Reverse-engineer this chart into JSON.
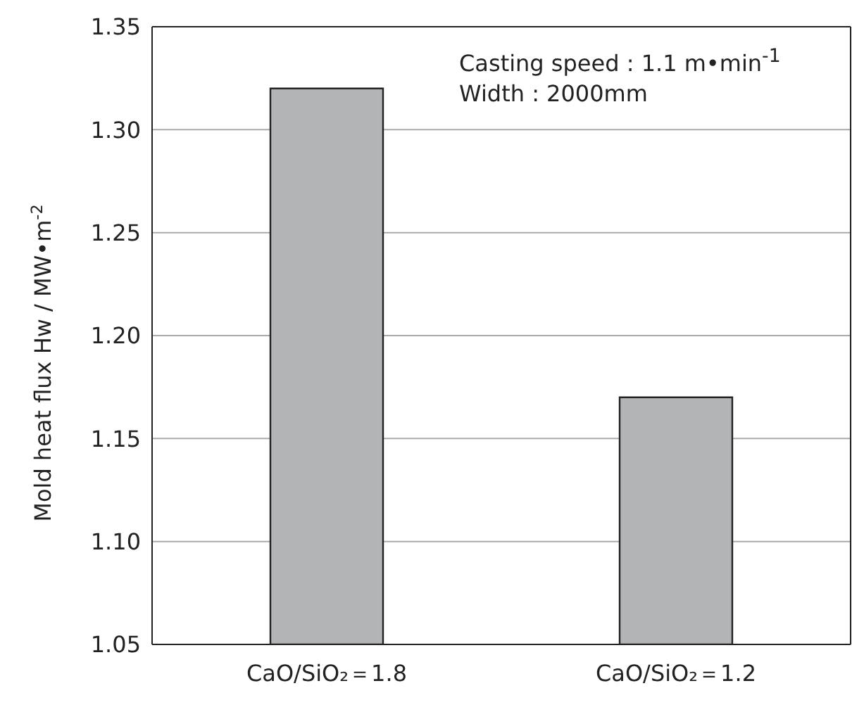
{
  "chart_data": {
    "type": "bar",
    "ylabel": "Mold heat flux Hw / MW•m$^{-2}$",
    "categories": [
      "CaO/SiO₂＝1.8",
      "CaO/SiO₂＝1.2"
    ],
    "values": [
      1.32,
      1.17
    ],
    "color": "#b3b4b6",
    "ylim": [
      1.05,
      1.35
    ],
    "yticks": [
      1.05,
      {
        "value": 1.1,
        "label": "1.10"
      },
      1.15,
      {
        "value": 1.2,
        "label": "1.20"
      },
      1.25,
      {
        "value": 1.3,
        "label": "1.30"
      },
      1.35
    ],
    "grid": "y",
    "annotations": [
      "Casting speed : 1.1 m•min$^{-1}$",
      "Width : 2000mm"
    ]
  }
}
